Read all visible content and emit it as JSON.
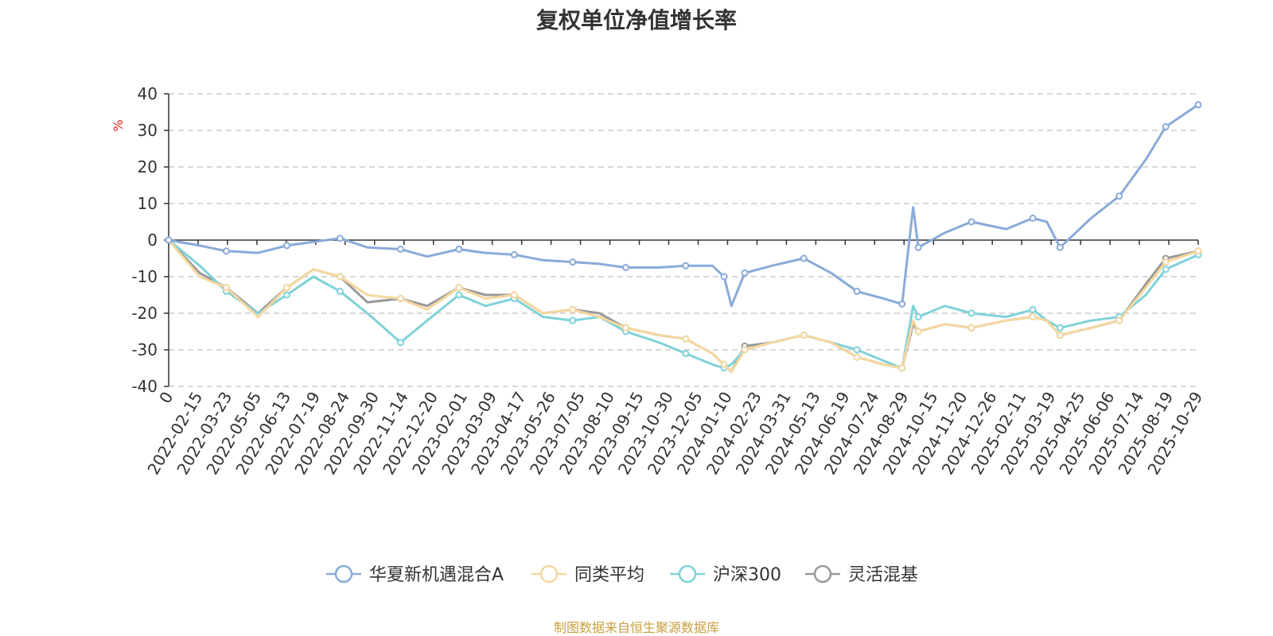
{
  "chart_data": {
    "type": "line",
    "title": "复权单位净值增长率",
    "ylabel": "%",
    "ylim": [
      -40,
      40
    ],
    "yticks": [
      -40,
      -30,
      -20,
      -10,
      0,
      10,
      20,
      30,
      40
    ],
    "grid": true,
    "legend_position": "bottom",
    "x_tick_labels": [
      "0",
      "2022-02-15",
      "2022-03-23",
      "2022-05-05",
      "2022-06-13",
      "2022-07-19",
      "2022-08-24",
      "2022-09-30",
      "2022-11-14",
      "2022-12-20",
      "2023-02-01",
      "2023-03-09",
      "2023-04-17",
      "2023-05-26",
      "2023-07-05",
      "2023-08-10",
      "2023-09-15",
      "2023-10-30",
      "2023-12-05",
      "2024-01-10",
      "2024-02-23",
      "2024-03-31",
      "2024-05-13",
      "2024-06-19",
      "2024-07-24",
      "2024-08-29",
      "2024-10-15",
      "2024-11-20",
      "2024-12-26",
      "2025-02-11",
      "2025-03-19",
      "2025-04-25",
      "2025-06-06",
      "2025-07-14",
      "2025-08-19",
      "2025-10-29"
    ],
    "x": [
      "2022-01-04",
      "2022-02-15",
      "2022-03-23",
      "2022-05-05",
      "2022-06-13",
      "2022-07-19",
      "2022-08-24",
      "2022-09-30",
      "2022-11-14",
      "2022-12-20",
      "2023-02-01",
      "2023-03-09",
      "2023-04-17",
      "2023-05-26",
      "2023-07-05",
      "2023-08-10",
      "2023-09-15",
      "2023-10-30",
      "2023-12-05",
      "2024-01-10",
      "2024-01-26",
      "2024-02-05",
      "2024-02-23",
      "2024-03-31",
      "2024-05-13",
      "2024-06-19",
      "2024-07-24",
      "2024-08-29",
      "2024-09-23",
      "2024-10-08",
      "2024-10-15",
      "2024-11-20",
      "2024-12-26",
      "2025-02-11",
      "2025-03-19",
      "2025-04-07",
      "2025-04-25",
      "2025-06-06",
      "2025-07-14",
      "2025-08-19",
      "2025-09-15",
      "2025-10-29"
    ],
    "series": [
      {
        "name": "华夏新机遇混合A",
        "color": "#8aaad8",
        "values": [
          0,
          -1.5,
          -3,
          -3.5,
          -1.5,
          -0.5,
          0.5,
          -2,
          -2.5,
          -4.5,
          -2.5,
          -3.5,
          -4,
          -5.5,
          -6,
          -6.5,
          -7.5,
          -7.5,
          -7,
          -7,
          -10,
          -18,
          -9,
          -7,
          -5,
          -9,
          -14,
          -16,
          -17.5,
          9,
          -2,
          2,
          5,
          3,
          6,
          5,
          -2,
          6,
          12,
          22,
          31,
          37
        ]
      },
      {
        "name": "同类平均",
        "color": "#f5d79e",
        "values": [
          0,
          -10,
          -13,
          -21,
          -13,
          -8,
          -10,
          -15,
          -16,
          -19,
          -13,
          -16,
          -15,
          -20,
          -19,
          -21,
          -24,
          -26,
          -27,
          -31,
          -34,
          -36,
          -30,
          -28,
          -26,
          -28,
          -32,
          -34,
          -35,
          -22,
          -25,
          -23,
          -24,
          -22,
          -21,
          -22,
          -26,
          -24,
          -22,
          -13,
          -6,
          -3
        ]
      },
      {
        "name": "沪深300",
        "color": "#7fd2d8",
        "values": [
          0,
          -7,
          -14,
          -20,
          -15,
          -10,
          -14,
          -20,
          -28,
          -22,
          -15,
          -18,
          -16,
          -21,
          -22,
          -21,
          -25,
          -28,
          -31,
          -34,
          -35,
          -34,
          -30,
          -28,
          -26,
          -28,
          -30,
          -33,
          -35,
          -18,
          -21,
          -18,
          -20,
          -21,
          -19,
          -22,
          -24,
          -22,
          -21,
          -15,
          -8,
          -4
        ]
      },
      {
        "name": "灵活混基",
        "color": "#999999",
        "values": [
          0,
          -9,
          -13,
          -20,
          -13,
          -8,
          -10,
          -17,
          -16,
          -18,
          -13,
          -15,
          -15,
          -20,
          -19,
          -20,
          -24,
          -26,
          -27,
          -31,
          -34,
          -36,
          -29,
          -28,
          -26,
          -28,
          -32,
          -34,
          -35,
          -23,
          -25,
          -23,
          -24,
          -22,
          -21,
          -22,
          -26,
          -24,
          -22,
          -12,
          -5,
          -3
        ]
      }
    ]
  },
  "source_note": "制图数据来自恒生聚源数据库"
}
